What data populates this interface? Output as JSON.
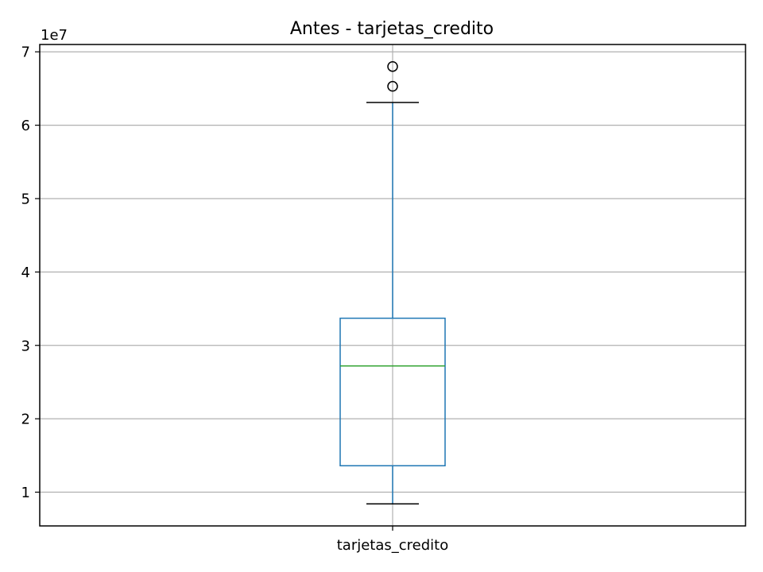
{
  "chart_data": {
    "type": "box",
    "title": "Antes - tarjetas_credito",
    "xlabel": "",
    "ylabel": "",
    "categories": [
      "tarjetas_credito"
    ],
    "y_offset_label": "1e7",
    "y_scale": 10000000,
    "ylim": [
      5400000,
      71000000
    ],
    "y_ticks": [
      10000000,
      20000000,
      30000000,
      40000000,
      50000000,
      60000000,
      70000000
    ],
    "y_tick_labels": [
      "1",
      "2",
      "3",
      "4",
      "5",
      "6",
      "7"
    ],
    "grid": true,
    "boxes": [
      {
        "name": "tarjetas_credito",
        "whisker_low": 8400000,
        "q1": 13600000,
        "median": 27200000,
        "q3": 33700000,
        "whisker_high": 63100000,
        "outliers": [
          65300000,
          68000000
        ]
      }
    ],
    "colors": {
      "box": "#1f77b4",
      "median": "#2ca02c",
      "whisker_cap": "#000000",
      "outlier": "#000000",
      "grid": "#b0b0b0",
      "axes": "#000000"
    }
  }
}
